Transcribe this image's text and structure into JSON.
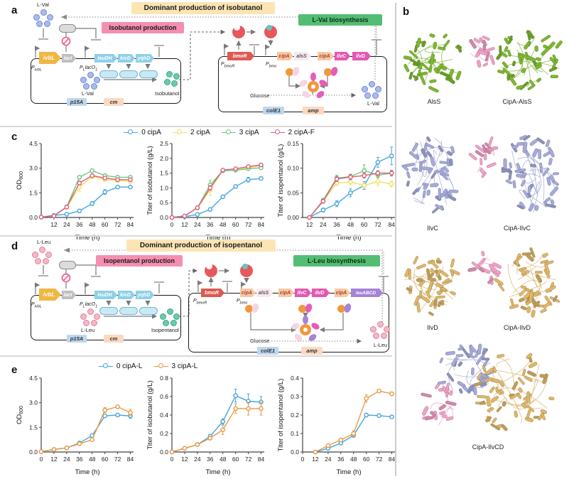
{
  "colors": {
    "banner_bg": "#FBE5B5",
    "production_bg": "#F48FB0",
    "biosynthesis_bg": "#53BE73",
    "gene_ivbL": "#F2B643",
    "gene_lacI": "#BFBFBF",
    "gene_operon": "#8FD0E8",
    "gene_bmoR": "#DD5A52",
    "gene_cipA_bg": "#F5C9A2",
    "gene_cipA_fg": "#B03A2E",
    "gene_alsS_bg": "#F8E9F0",
    "gene_alsS_fg": "#555555",
    "gene_ilv": "#E558B2",
    "gene_leuABCD": "#A583D6",
    "gene_fg_white": "#ffffff",
    "origin_bg": "#BDD7EE",
    "marker_bg": "#FAD9C0",
    "lval": "#A9BCEC",
    "lval_border": "#6E87D8",
    "lleu": "#F5B7C6",
    "lleu_border": "#E2849A",
    "alcohol": "#6EC9A8",
    "alcohol_border": "#3BAA88",
    "scaffold_orange": "#F0983C",
    "petal_pale": "#F7D3E6",
    "petal_magenta": "#E65CB8",
    "petal_purple": "#A583D6",
    "pacman_red": "#E8575A",
    "ligand_teal": "#66C6BE"
  },
  "panel_a": {
    "label": "a",
    "banner": "Dominant production of isobutanol",
    "production_box": "Isobutanol production",
    "biosynthesis_box": "L-Val biosynthesis",
    "feedback_metabolite": "L-Val",
    "left": {
      "genes": [
        "ivbL",
        "lacI",
        "leuDH",
        "kivD",
        "yqhD"
      ],
      "promoter1": {
        "base": "P",
        "sub": "ivbL"
      },
      "promoter2": {
        "base": "P",
        "sub": "L",
        "rest": "lacO",
        "sub2": "1"
      },
      "substrate": "L-Val",
      "product": "Isobutanol",
      "origin": "p15A",
      "marker": "cm"
    },
    "right": {
      "genes": [
        "bmoR",
        "cipA",
        "alsS",
        "cipA",
        "ilvC",
        "ilvD"
      ],
      "promoter1": {
        "base": "P",
        "sub": "bmoR"
      },
      "promoter2": {
        "base": "P",
        "sub": "bmo"
      },
      "carbon": "Glucose",
      "product": "L-Val",
      "origin": "colE1",
      "marker": "amp"
    }
  },
  "panel_b": {
    "label": "b",
    "colors": {
      "alss": "#7CB82F",
      "ilvc": "#A6AADB",
      "ilvd": "#DFB768",
      "cipa": "#F2A0C8"
    },
    "structures": [
      {
        "label": "AlsS"
      },
      {
        "label": "CipA-AlsS"
      },
      {
        "label": "IlvC"
      },
      {
        "label": "CipA-IlvC"
      },
      {
        "label": "IlvD"
      },
      {
        "label": "CipA-IlvD"
      },
      {
        "label": "CipA-IlvCD"
      }
    ]
  },
  "panel_c": {
    "label": "c",
    "legend": [
      {
        "label": "0 cipA",
        "color": "#45A6DC"
      },
      {
        "label": "2 cipA",
        "color": "#ECE25F"
      },
      {
        "label": "3 cipA",
        "color": "#6FC57E"
      },
      {
        "label": "2 cipA-F",
        "color": "#DB5F7F"
      }
    ]
  },
  "panel_d": {
    "label": "d",
    "banner": "Dominant production of isopentanol",
    "production_box": "Isopentanol production",
    "biosynthesis_box": "L-Leu biosynthesis",
    "feedback_metabolite": "L-Leu",
    "left": {
      "genes": [
        "ivbL",
        "lacI",
        "leuDH",
        "kivD",
        "yqhD"
      ],
      "promoter1": {
        "base": "P",
        "sub": "ivbL"
      },
      "promoter2": {
        "base": "P",
        "sub": "L",
        "rest": "lacO",
        "sub2": "1"
      },
      "substrate": "L-Leu",
      "product": "Isopentanol",
      "origin": "p15A",
      "marker": "cm"
    },
    "right": {
      "genes": [
        "bmoR",
        "cipA",
        "alsS",
        "cipA",
        "ilvC",
        "ilvD",
        "cipA",
        "leuABCD"
      ],
      "promoter1": {
        "base": "P",
        "sub": "bmoR"
      },
      "promoter2": {
        "base": "P",
        "sub": "bmo"
      },
      "carbon": "Glucose",
      "product": "L-Leu",
      "origin": "colE1",
      "marker": "amp"
    }
  },
  "panel_e": {
    "label": "e",
    "legend": [
      {
        "label": "0 cipA-L",
        "color": "#45A6DC"
      },
      {
        "label": "3 cipA-L",
        "color": "#E89A45"
      }
    ]
  },
  "chart_data": [
    {
      "id": "c1",
      "type": "line",
      "panel": "c",
      "xlabel": "Time (h)",
      "ylabel": "OD",
      "ylabel_sub": "600",
      "xlim": [
        0,
        87
      ],
      "ylim": [
        0,
        4.5
      ],
      "xticks": [
        12,
        24,
        36,
        48,
        60,
        72,
        84
      ],
      "yticks": [
        "0.0",
        "1.5",
        "3.0",
        "4.5"
      ],
      "x": [
        0,
        12,
        24,
        36,
        48,
        60,
        72,
        84
      ],
      "series": [
        {
          "name": "0 cipA",
          "color": "#45A6DC",
          "values": [
            0.02,
            0.13,
            0.2,
            0.4,
            0.85,
            1.55,
            1.85,
            1.85
          ],
          "err": [
            0,
            0,
            0,
            0.06,
            0.12,
            0.15,
            0.06,
            0.08
          ]
        },
        {
          "name": "2 cipA",
          "color": "#ECE25F",
          "values": [
            0.02,
            0.1,
            0.62,
            1.85,
            2.5,
            2.3,
            2.25,
            2.2
          ],
          "err": [
            0,
            0,
            0.08,
            0.25,
            0.12,
            0.1,
            0.1,
            0.12
          ]
        },
        {
          "name": "3 cipA",
          "color": "#6FC57E",
          "values": [
            0.02,
            0.1,
            0.65,
            2.45,
            2.85,
            2.55,
            2.45,
            2.45
          ],
          "err": [
            0,
            0,
            0.06,
            0.1,
            0.08,
            0.08,
            0.1,
            0.1
          ]
        },
        {
          "name": "2 cipA-F",
          "color": "#DB5F7F",
          "values": [
            0.02,
            0.1,
            0.63,
            2.1,
            2.55,
            2.4,
            2.3,
            2.3
          ],
          "err": [
            0,
            0,
            0.06,
            0.12,
            0.08,
            0.06,
            0.06,
            0.1
          ]
        }
      ]
    },
    {
      "id": "c2",
      "type": "line",
      "panel": "c",
      "xlabel": "Time (h)",
      "ylabel": "Titer of isobutanol (g/L)",
      "xlim": [
        0,
        87
      ],
      "ylim": [
        0,
        2.5
      ],
      "xticks": [
        0,
        12,
        24,
        36,
        48,
        60,
        72,
        84
      ],
      "yticks": [
        "0.0",
        "0.5",
        "1.0",
        "1.5",
        "2.0",
        "2.5"
      ],
      "x": [
        0,
        12,
        24,
        36,
        48,
        60,
        72,
        84
      ],
      "series": [
        {
          "name": "0 cipA",
          "color": "#45A6DC",
          "values": [
            0,
            0.03,
            0.1,
            0.27,
            0.7,
            1.05,
            1.28,
            1.32
          ],
          "err": [
            0,
            0,
            0,
            0.03,
            0.03,
            0.04,
            0.08,
            0.06
          ]
        },
        {
          "name": "2 cipA",
          "color": "#ECE25F",
          "values": [
            0,
            0.05,
            0.32,
            0.93,
            1.6,
            1.62,
            1.68,
            1.75
          ],
          "err": [
            0,
            0,
            0.04,
            0.18,
            0.04,
            0.04,
            0.04,
            0.05
          ]
        },
        {
          "name": "3 cipA",
          "color": "#6FC57E",
          "values": [
            0,
            0.05,
            0.33,
            1.1,
            1.58,
            1.6,
            1.65,
            1.68
          ],
          "err": [
            0,
            0,
            0.04,
            0.15,
            0.04,
            0.04,
            0.04,
            0.04
          ]
        },
        {
          "name": "2 cipA-F",
          "color": "#DB5F7F",
          "values": [
            0,
            0.05,
            0.33,
            1.0,
            1.6,
            1.65,
            1.72,
            1.78
          ],
          "err": [
            0,
            0,
            0.04,
            0.08,
            0.04,
            0.04,
            0.04,
            0.04
          ]
        }
      ]
    },
    {
      "id": "c3",
      "type": "line",
      "panel": "c",
      "xlabel": "Time (h)",
      "ylabel": "Titer of isopentanol (g/L)",
      "xlim": [
        6,
        87
      ],
      "ylim": [
        0,
        0.15
      ],
      "xticks": [
        12,
        24,
        36,
        48,
        60,
        72,
        84
      ],
      "yticks": [
        "0.00",
        "0.05",
        "0.10",
        "0.15"
      ],
      "x": [
        12,
        24,
        36,
        48,
        60,
        72,
        84
      ],
      "series": [
        {
          "name": "0 cipA",
          "color": "#45A6DC",
          "values": [
            0.0,
            0.015,
            0.028,
            0.05,
            0.065,
            0.112,
            0.125
          ],
          "err": [
            0,
            0.004,
            0.006,
            0.008,
            0.008,
            0.01,
            0.018
          ]
        },
        {
          "name": "2 cipA",
          "color": "#ECE25F",
          "values": [
            0.0,
            0.033,
            0.07,
            0.072,
            0.065,
            0.073,
            0.068
          ],
          "err": [
            0,
            0.004,
            0.005,
            0.005,
            0.006,
            0.008,
            0.006
          ]
        },
        {
          "name": "3 cipA",
          "color": "#6FC57E",
          "values": [
            0.0,
            0.035,
            0.08,
            0.083,
            0.095,
            0.086,
            0.09
          ],
          "err": [
            0,
            0.004,
            0.006,
            0.005,
            0.012,
            0.006,
            0.006
          ]
        },
        {
          "name": "2 cipA-F",
          "color": "#DB5F7F",
          "values": [
            0.0,
            0.033,
            0.078,
            0.082,
            0.085,
            0.09,
            0.09
          ],
          "err": [
            0,
            0.004,
            0.005,
            0.005,
            0.005,
            0.005,
            0.005
          ]
        }
      ]
    },
    {
      "id": "e1",
      "type": "line",
      "panel": "e",
      "xlabel": "Time (h)",
      "ylabel": "OD",
      "ylabel_sub": "600",
      "xlim": [
        0,
        87
      ],
      "ylim": [
        0,
        4.5
      ],
      "xticks": [
        0,
        12,
        24,
        36,
        48,
        60,
        72,
        84
      ],
      "yticks": [
        "0.0",
        "1.5",
        "3.0",
        "4.5"
      ],
      "x": [
        0,
        12,
        24,
        36,
        48,
        60,
        72,
        84
      ],
      "series": [
        {
          "name": "0 cipA-L",
          "color": "#45A6DC",
          "values": [
            0.02,
            0.15,
            0.25,
            0.55,
            1.0,
            2.2,
            2.25,
            2.2
          ],
          "err": [
            0,
            0,
            0,
            0.05,
            0.08,
            0.1,
            0.1,
            0.15
          ]
        },
        {
          "name": "3 cipA-L",
          "color": "#E89A45",
          "values": [
            0.02,
            0.15,
            0.25,
            0.5,
            0.75,
            2.55,
            2.75,
            2.4
          ],
          "err": [
            0,
            0,
            0,
            0.05,
            0.1,
            0.15,
            0.1,
            0.2
          ]
        }
      ]
    },
    {
      "id": "e2",
      "type": "line",
      "panel": "e",
      "xlabel": "Time (h)",
      "ylabel": "Titer of isobutanol (g/L)",
      "xlim": [
        0,
        87
      ],
      "ylim": [
        0,
        0.8
      ],
      "xticks": [
        0,
        12,
        24,
        36,
        48,
        60,
        72,
        84
      ],
      "yticks": [
        "0.0",
        "0.2",
        "0.4",
        "0.6",
        "0.8"
      ],
      "x": [
        0,
        12,
        24,
        36,
        48,
        60,
        72,
        84
      ],
      "series": [
        {
          "name": "0 cipA-L",
          "color": "#45A6DC",
          "values": [
            0,
            0.04,
            0.08,
            0.17,
            0.33,
            0.61,
            0.55,
            0.54
          ],
          "err": [
            0,
            0,
            0,
            0.02,
            0.03,
            0.07,
            0.08,
            0.06
          ]
        },
        {
          "name": "3 cipA-L",
          "color": "#E89A45",
          "values": [
            0,
            0.04,
            0.08,
            0.15,
            0.24,
            0.47,
            0.47,
            0.47
          ],
          "err": [
            0,
            0,
            0,
            0.02,
            0.05,
            0.05,
            0.07,
            0.07
          ]
        }
      ]
    },
    {
      "id": "e3",
      "type": "line",
      "panel": "e",
      "xlabel": "Time (h)",
      "ylabel": "Titer of isopentanol (g/L)",
      "xlim": [
        0,
        87
      ],
      "ylim": [
        0,
        0.4
      ],
      "xticks": [
        0,
        12,
        24,
        36,
        48,
        60,
        72,
        84
      ],
      "yticks": [
        "0.0",
        "0.1",
        "0.2",
        "0.3",
        "0.4"
      ],
      "x": [
        12,
        24,
        36,
        48,
        60,
        72,
        84
      ],
      "series": [
        {
          "name": "0 cipA-L",
          "color": "#45A6DC",
          "values": [
            0.0,
            0.02,
            0.048,
            0.09,
            0.2,
            0.197,
            0.19
          ],
          "err": [
            0,
            0.004,
            0.006,
            0.01,
            0.01,
            0.008,
            0.008
          ]
        },
        {
          "name": "3 cipA-L",
          "color": "#E89A45",
          "values": [
            0.0,
            0.035,
            0.065,
            0.1,
            0.29,
            0.33,
            0.315
          ],
          "err": [
            0,
            0.005,
            0.008,
            0.015,
            0.02,
            0.008,
            0.01
          ]
        }
      ]
    }
  ]
}
